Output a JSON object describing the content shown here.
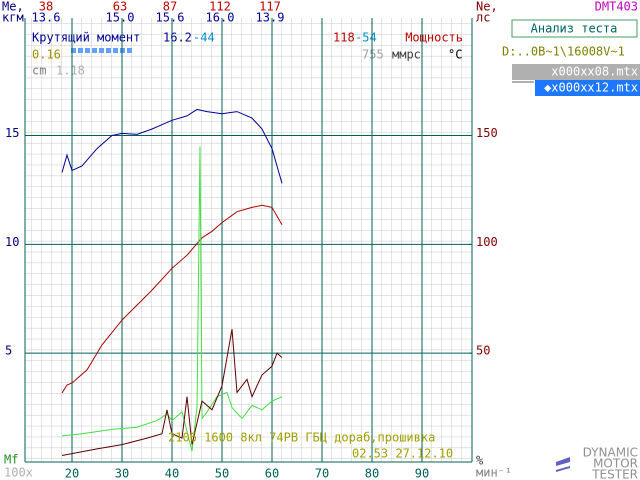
{
  "header": {
    "left_label_lines": [
      "Me,",
      "кгм"
    ],
    "right_label_lines": [
      "Ne,",
      "лс"
    ],
    "app_code": "DMT403",
    "power_row": [
      "38",
      "63",
      "87",
      "112",
      "117"
    ],
    "torque_row": [
      "13.6",
      "15.0",
      "15.6",
      "16.0",
      "13.9"
    ]
  },
  "side_panel": {
    "button": "Анализ теста",
    "path": "D:..0B~1\\16008V~1",
    "files": [
      "x000xx08.mtx",
      "◆x000xx12.mtx"
    ],
    "selected": 1
  },
  "readouts": {
    "torque_value": "16.2",
    "torque_shift": "-44",
    "power_value": "118",
    "power_shift": "-54",
    "left_value": "0.16",
    "cm_label": "cm",
    "cm_value": "1.18",
    "pressure_value": "755",
    "pressure_unit": "ммрс",
    "temp_unit": "°C"
  },
  "notes": {
    "engine": "2106 1600 8кл 74РВ ГБЦ дораб,прошивка",
    "timestamp": "02.53 27.12.10"
  },
  "logo": [
    "DYNAMIC",
    "MOTOR",
    "TESTER"
  ],
  "chart_data": {
    "type": "line",
    "x_multiplier_label": "100x",
    "x_label": "мин⁻¹",
    "mf_label": "Mf",
    "pct_label": "%",
    "xlim": [
      10.6,
      100
    ],
    "xticks": [
      20,
      30,
      40,
      50,
      60,
      70,
      80,
      90
    ],
    "ylim": [
      0,
      20.4
    ],
    "yticks": [
      5,
      10,
      15
    ],
    "y2lim": [
      0,
      204
    ],
    "y2ticks": [
      50,
      100,
      150
    ],
    "grid": true,
    "series": [
      {
        "name": "Крутящий момент",
        "color": "#000099",
        "x": [
          18,
          19,
          20,
          22,
          25,
          28,
          30,
          33,
          36,
          40,
          43,
          45,
          47,
          50,
          53,
          56,
          58,
          60,
          62
        ],
        "values": [
          13.3,
          14.1,
          13.4,
          13.6,
          14.4,
          15.0,
          15.1,
          15.05,
          15.3,
          15.7,
          15.9,
          16.2,
          16.1,
          16.0,
          16.1,
          15.8,
          15.3,
          14.4,
          12.8
        ]
      },
      {
        "name": "Мощность",
        "color": "#b00000",
        "axis": "y2",
        "x": [
          18,
          19,
          20,
          23,
          26,
          30,
          33,
          36,
          40,
          43,
          46,
          48,
          50,
          53,
          56,
          58,
          60,
          62
        ],
        "values": [
          31.7,
          35.4,
          36.3,
          42.3,
          53.8,
          65.2,
          72.1,
          79,
          89,
          95,
          103,
          106,
          110,
          115,
          117,
          118,
          117,
          109
        ]
      },
      {
        "color": "#40e040",
        "x": [
          18,
          22,
          28,
          33,
          37,
          39,
          40,
          42,
          44,
          45,
          45.6,
          46,
          47,
          49,
          51,
          52,
          54,
          56,
          58,
          60,
          62
        ],
        "values": [
          1.2,
          1.3,
          1.5,
          1.6,
          1.9,
          2.2,
          1.9,
          2.3,
          0.5,
          2.5,
          14.5,
          2.0,
          2.3,
          3.0,
          3.2,
          2.5,
          2.0,
          2.6,
          2.4,
          2.8,
          3.0
        ]
      },
      {
        "color": "#600000",
        "x": [
          18,
          25,
          30,
          35,
          38,
          39,
          40,
          42,
          43,
          44,
          46,
          48,
          50,
          52,
          53,
          55,
          56,
          58,
          60,
          61,
          62
        ],
        "values": [
          0.3,
          0.6,
          0.8,
          1.1,
          1.3,
          2.4,
          1.3,
          1.1,
          3.0,
          0.8,
          2.8,
          2.4,
          3.5,
          6.1,
          3.2,
          3.8,
          3.0,
          4.0,
          4.4,
          5.0,
          4.8
        ]
      }
    ]
  }
}
